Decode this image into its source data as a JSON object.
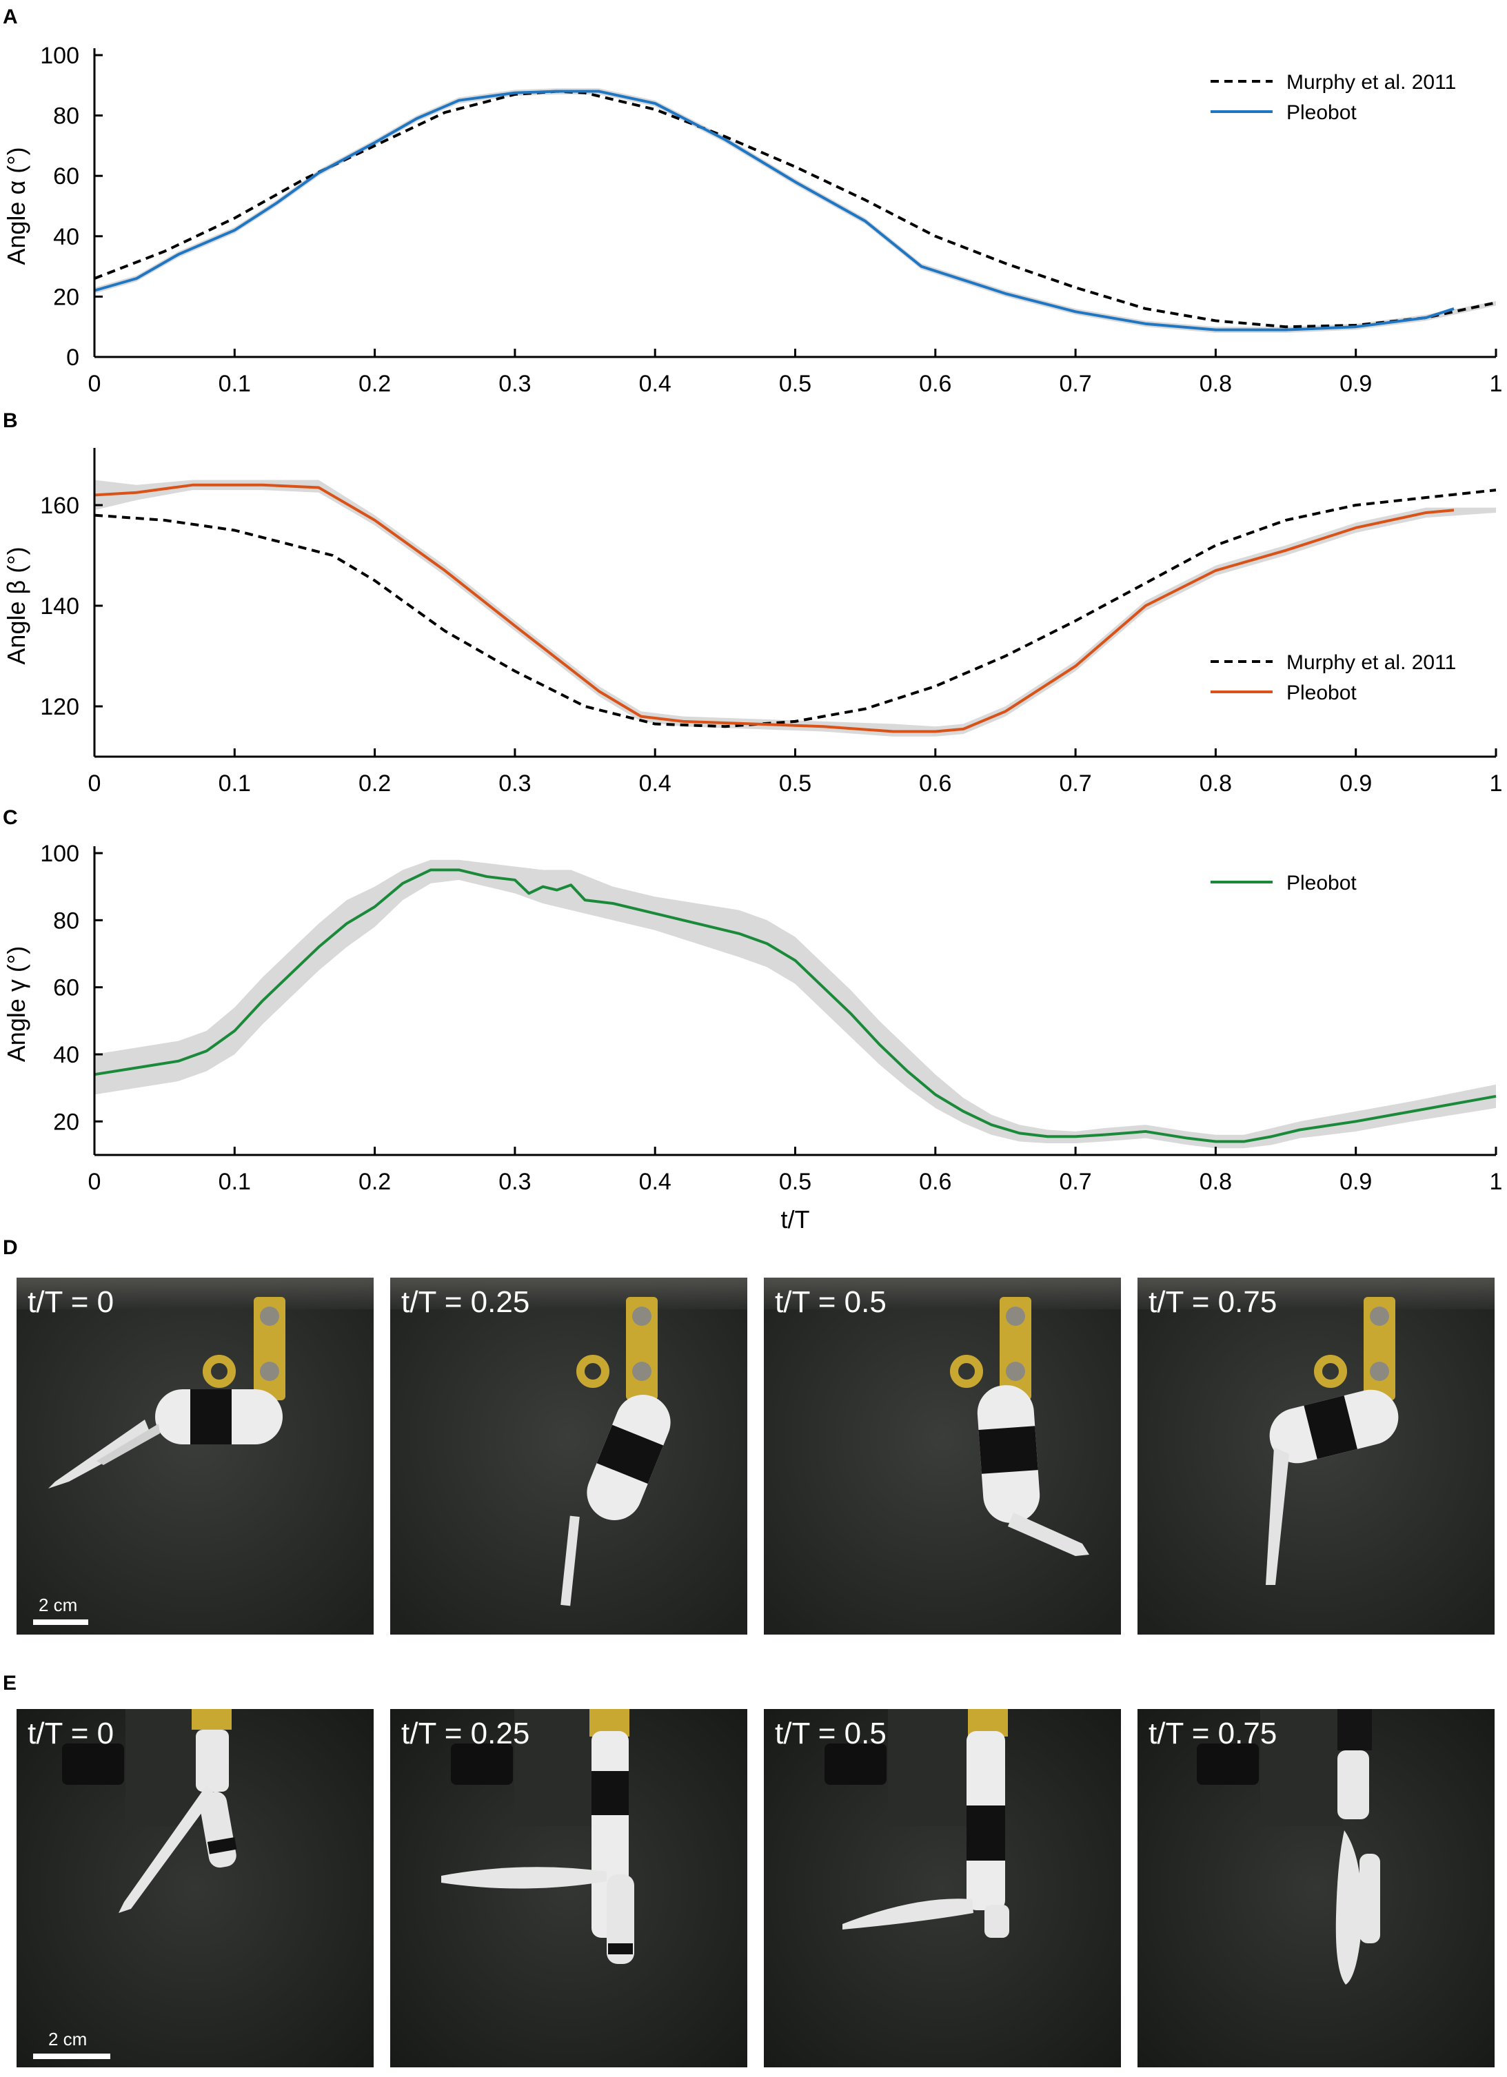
{
  "panels": {
    "A": "A",
    "B": "B",
    "C": "C",
    "D": "D",
    "E": "E"
  },
  "chart_data": [
    {
      "id": "A",
      "type": "line",
      "xlabel": "",
      "ylabel": "Angle α (°)",
      "xlim": [
        0,
        1
      ],
      "ylim": [
        0,
        100
      ],
      "xticks": [
        "0",
        "0.1",
        "0.2",
        "0.3",
        "0.4",
        "0.5",
        "0.6",
        "0.7",
        "0.8",
        "0.9",
        "1"
      ],
      "yticks": [
        "0",
        "20",
        "40",
        "60",
        "80",
        "100"
      ],
      "legend_position": "top-right",
      "series": [
        {
          "name": "Murphy et al. 2011",
          "style": "dashed",
          "color": "#000000",
          "x": [
            0,
            0.05,
            0.1,
            0.15,
            0.2,
            0.25,
            0.3,
            0.33,
            0.35,
            0.4,
            0.45,
            0.5,
            0.55,
            0.6,
            0.65,
            0.7,
            0.75,
            0.8,
            0.85,
            0.9,
            0.95,
            1.0
          ],
          "y": [
            26,
            35,
            46,
            59,
            70,
            81,
            87,
            88,
            87.5,
            82,
            73,
            63,
            52,
            40,
            31,
            23,
            16,
            12,
            10,
            10.5,
            13,
            18
          ]
        },
        {
          "name": "Pleobot",
          "style": "solid",
          "color": "#1f77c4",
          "x": [
            0,
            0.03,
            0.06,
            0.1,
            0.13,
            0.16,
            0.2,
            0.23,
            0.26,
            0.3,
            0.33,
            0.36,
            0.4,
            0.45,
            0.5,
            0.55,
            0.59,
            0.65,
            0.7,
            0.75,
            0.8,
            0.85,
            0.9,
            0.95,
            0.97
          ],
          "y": [
            22,
            26,
            34,
            42,
            51,
            61,
            71,
            79,
            85,
            87.5,
            88,
            88,
            84,
            72,
            58,
            45,
            30,
            21,
            15,
            11,
            9,
            9,
            10,
            13,
            16
          ]
        }
      ],
      "shaded_band": {
        "x": [
          0,
          0.03,
          0.06,
          0.1,
          0.13,
          0.16,
          0.2,
          0.23,
          0.26,
          0.3,
          0.33,
          0.36,
          0.4,
          0.45,
          0.5,
          0.55,
          0.59,
          0.65,
          0.7,
          0.75,
          0.8,
          0.85,
          0.9,
          0.95,
          1.0
        ],
        "low": [
          21,
          25,
          33,
          41,
          50,
          60,
          70,
          78,
          84,
          86.5,
          87,
          87,
          83,
          71,
          57,
          44,
          29,
          20,
          14,
          10,
          8,
          8,
          9,
          12,
          17
        ],
        "high": [
          23,
          27,
          35,
          43,
          52,
          62,
          72,
          80,
          86,
          88.5,
          89,
          89,
          85,
          73,
          59,
          46,
          31,
          22,
          16,
          12,
          10,
          10,
          11,
          14,
          18.5
        ]
      }
    },
    {
      "id": "B",
      "type": "line",
      "xlabel": "",
      "ylabel": "Angle β (°)",
      "xlim": [
        0,
        1
      ],
      "ylim": [
        110,
        170
      ],
      "xticks": [
        "0",
        "0.1",
        "0.2",
        "0.3",
        "0.4",
        "0.5",
        "0.6",
        "0.7",
        "0.8",
        "0.9",
        "1"
      ],
      "yticks": [
        "120",
        "140",
        "160"
      ],
      "legend_position": "center-right",
      "series": [
        {
          "name": "Murphy et al. 2011",
          "style": "dashed",
          "color": "#000000",
          "x": [
            0,
            0.05,
            0.1,
            0.17,
            0.2,
            0.25,
            0.3,
            0.35,
            0.4,
            0.45,
            0.5,
            0.55,
            0.6,
            0.65,
            0.7,
            0.75,
            0.8,
            0.85,
            0.9,
            0.95,
            1.0
          ],
          "y": [
            158,
            157,
            155,
            150,
            145,
            135,
            127,
            120,
            116.5,
            116,
            117,
            119.5,
            124,
            130,
            137,
            144.5,
            152,
            157,
            160,
            161.5,
            163
          ]
        },
        {
          "name": "Pleobot",
          "style": "solid",
          "color": "#d95319",
          "x": [
            0,
            0.03,
            0.07,
            0.12,
            0.16,
            0.2,
            0.25,
            0.3,
            0.36,
            0.39,
            0.42,
            0.47,
            0.52,
            0.57,
            0.6,
            0.62,
            0.65,
            0.7,
            0.75,
            0.8,
            0.85,
            0.9,
            0.95,
            0.97
          ],
          "y": [
            162,
            162.5,
            164,
            164,
            163.5,
            157,
            147,
            136,
            123,
            118,
            117,
            116.5,
            116,
            115,
            115,
            115.5,
            119,
            128,
            140,
            147,
            151,
            155.5,
            158.5,
            159
          ]
        }
      ],
      "shaded_band": {
        "x": [
          0,
          0.03,
          0.07,
          0.12,
          0.16,
          0.2,
          0.25,
          0.3,
          0.36,
          0.39,
          0.42,
          0.47,
          0.52,
          0.57,
          0.6,
          0.62,
          0.65,
          0.7,
          0.75,
          0.8,
          0.85,
          0.9,
          0.95,
          1.0
        ],
        "low": [
          159,
          161,
          163,
          163,
          162.5,
          156,
          146,
          135,
          122,
          117,
          116,
          115.5,
          115,
          114,
          114,
          114.5,
          118,
          127,
          139,
          146,
          150,
          154.5,
          157.5,
          158.5
        ],
        "high": [
          165,
          164,
          165,
          165,
          165,
          158,
          148,
          137,
          124,
          119,
          118,
          117.5,
          117,
          116.5,
          116,
          116.5,
          120,
          129,
          141,
          148,
          152,
          156.5,
          159.5,
          159.5
        ]
      }
    },
    {
      "id": "C",
      "type": "line",
      "xlabel": "t/T",
      "ylabel": "Angle γ (°)",
      "xlim": [
        0,
        1
      ],
      "ylim": [
        10,
        100
      ],
      "xticks": [
        "0",
        "0.1",
        "0.2",
        "0.3",
        "0.4",
        "0.5",
        "0.6",
        "0.7",
        "0.8",
        "0.9",
        "1"
      ],
      "yticks": [
        "20",
        "40",
        "60",
        "80",
        "100"
      ],
      "legend_position": "top-right",
      "series": [
        {
          "name": "Pleobot",
          "style": "solid",
          "color": "#1a8a3a",
          "x": [
            0,
            0.03,
            0.06,
            0.08,
            0.1,
            0.12,
            0.14,
            0.16,
            0.18,
            0.2,
            0.22,
            0.24,
            0.26,
            0.28,
            0.3,
            0.31,
            0.32,
            0.33,
            0.34,
            0.35,
            0.37,
            0.4,
            0.43,
            0.46,
            0.48,
            0.5,
            0.52,
            0.54,
            0.56,
            0.58,
            0.6,
            0.62,
            0.64,
            0.66,
            0.68,
            0.7,
            0.72,
            0.75,
            0.78,
            0.8,
            0.82,
            0.84,
            0.86,
            0.9,
            0.94,
            1.0
          ],
          "y": [
            34,
            36,
            38,
            41,
            47,
            56,
            64,
            72,
            79,
            84,
            91,
            95,
            95,
            93,
            92,
            88,
            90,
            89,
            90.5,
            86,
            85,
            82,
            79,
            76,
            73,
            68,
            60,
            52,
            43,
            35,
            28,
            23,
            19,
            16.5,
            15.5,
            15.5,
            16,
            17,
            15,
            14,
            14,
            15.5,
            17.5,
            20,
            23,
            27.5
          ]
        }
      ],
      "shaded_band": {
        "x": [
          0,
          0.03,
          0.06,
          0.08,
          0.1,
          0.12,
          0.14,
          0.16,
          0.18,
          0.2,
          0.22,
          0.24,
          0.26,
          0.28,
          0.3,
          0.32,
          0.34,
          0.37,
          0.4,
          0.43,
          0.46,
          0.48,
          0.5,
          0.52,
          0.54,
          0.56,
          0.58,
          0.6,
          0.62,
          0.64,
          0.66,
          0.68,
          0.7,
          0.72,
          0.75,
          0.78,
          0.8,
          0.82,
          0.84,
          0.86,
          0.9,
          0.94,
          1.0
        ],
        "low": [
          28,
          30,
          32,
          35,
          40,
          49,
          57,
          65,
          72,
          78,
          86,
          91,
          92,
          90,
          88,
          85,
          83,
          80,
          77,
          73,
          69,
          66,
          61,
          53,
          45,
          37,
          30,
          24,
          19.5,
          16,
          14,
          13.5,
          13.5,
          14,
          15,
          13,
          12,
          12,
          13,
          15,
          17,
          20,
          24
        ],
        "high": [
          40,
          42,
          44,
          47,
          54,
          63,
          71,
          79,
          86,
          90,
          95,
          98,
          98,
          97,
          96,
          95,
          95,
          90,
          87,
          85,
          83,
          80,
          75,
          67,
          59,
          50,
          42,
          34,
          27,
          22,
          19,
          17.5,
          17,
          18,
          19,
          17,
          16,
          16,
          18,
          20,
          23,
          26,
          31
        ]
      }
    }
  ],
  "photos": {
    "row_d": {
      "frames": [
        "t/T = 0",
        "t/T = 0.25",
        "t/T = 0.5",
        "t/T = 0.75"
      ],
      "scale_bar": "2 cm"
    },
    "row_e": {
      "frames": [
        "t/T = 0",
        "t/T = 0.25",
        "t/T = 0.5",
        "t/T = 0.75"
      ],
      "scale_bar": "2 cm"
    }
  },
  "colors": {
    "band": "#d9d9d9",
    "photo_bg_d": "#2b2d2b",
    "photo_bg_e": "#1f2220",
    "bracket": "#c9a832"
  }
}
